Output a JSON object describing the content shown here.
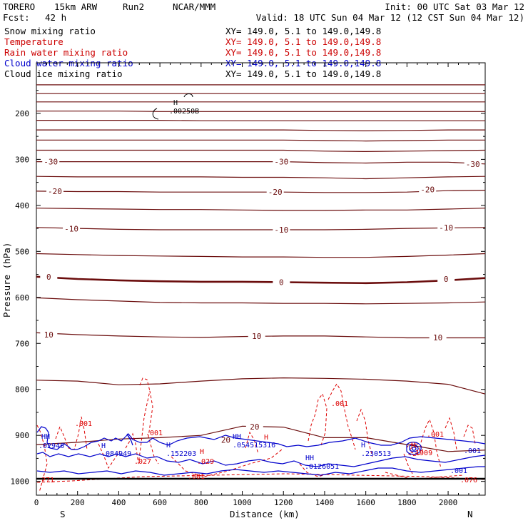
{
  "header": {
    "model": "TORERO",
    "resolution": "15km ARW",
    "run": "Run2",
    "org": "NCAR/MMM",
    "init": "Init: 00 UTC Sat 03 Mar 12",
    "fcst_label": "Fcst:",
    "fcst_value": "42 h",
    "valid": "Valid: 18 UTC Sun 04 Mar 12 (12 CST Sun 04 Mar 12)"
  },
  "fields": [
    {
      "name": "Snow mixing ratio",
      "color": "#000000",
      "xy": "XY= 149.0,  5.1 to 149.0,149.8"
    },
    {
      "name": "Temperature",
      "color": "#cc0000",
      "xy": "XY= 149.0,  5.1 to 149.0,149.8"
    },
    {
      "name": "Rain water mixing ratio",
      "color": "#cc0000",
      "xy": "XY= 149.0,  5.1 to 149.0,149.8"
    },
    {
      "name": "Cloud water mixing ratio",
      "color": "#0000cc",
      "xy": "XY= 149.0,  5.1 to 149.0,149.8"
    },
    {
      "name": "Cloud ice mixing ratio",
      "color": "#000000",
      "xy": "XY= 149.0,  5.1 to 149.0,149.8"
    }
  ],
  "colors": {
    "temperature": "#6b0d0d",
    "rain": "#dd0000",
    "cloud_water": "#0000cc",
    "axis": "#000000"
  },
  "chart_data": {
    "type": "line",
    "xlabel": "Distance (km)",
    "ylabel": "Pressure (hPa)",
    "xlim": [
      0,
      2180
    ],
    "ylim": [
      1030,
      90
    ],
    "x_ticks": [
      0,
      200,
      400,
      600,
      800,
      1000,
      1200,
      1400,
      1600,
      1800,
      2000
    ],
    "y_ticks": [
      200,
      300,
      400,
      500,
      600,
      700,
      800,
      900,
      1000
    ],
    "x_end_labels": {
      "left": "S",
      "right": "N"
    },
    "temperature_isotherm_labels": [
      {
        "value": "-30",
        "x": [
          70,
          1190,
          2120
        ],
        "p": [
          305,
          305,
          310
        ]
      },
      {
        "value": "-20",
        "x": [
          90,
          1160,
          1900
        ],
        "p": [
          369,
          371,
          365
        ]
      },
      {
        "value": "-10",
        "x": [
          170,
          1190,
          1990
        ],
        "p": [
          451,
          453,
          448
        ]
      },
      {
        "value": "0",
        "x": [
          60,
          1190,
          1990
        ],
        "p": [
          555,
          567,
          560
        ]
      },
      {
        "value": "10",
        "x": [
          60,
          1070,
          1950
        ],
        "p": [
          681,
          684,
          687
        ]
      },
      {
        "value": "20",
        "x": [
          1060,
          920
        ],
        "p": [
          881,
          910
        ]
      }
    ],
    "temperature_contours_hPa_at_x": {
      "x": [
        0,
        200,
        400,
        600,
        800,
        1000,
        1200,
        1400,
        1600,
        1800,
        2000,
        2180
      ],
      "levels": [
        [
          138,
          138,
          138,
          138,
          138,
          138,
          138,
          138,
          138,
          138,
          138,
          138
        ],
        [
          157,
          157,
          157,
          157,
          157,
          157,
          157,
          157,
          157,
          157,
          157,
          157
        ],
        [
          175,
          175,
          175,
          175,
          175,
          175,
          175,
          175,
          175,
          175,
          175,
          175
        ],
        [
          195,
          195,
          195,
          196,
          196,
          196,
          196,
          196,
          196,
          196,
          196,
          196
        ],
        [
          215,
          215,
          215,
          215,
          216,
          216,
          216,
          216,
          216,
          216,
          216,
          216
        ],
        [
          236,
          236,
          236,
          236,
          236,
          236,
          236,
          237,
          238,
          237,
          236,
          236
        ],
        [
          258,
          258,
          258,
          258,
          258,
          258,
          258,
          259,
          260,
          259,
          258,
          258
        ],
        [
          280,
          280,
          280,
          280,
          280,
          280,
          280,
          282,
          283,
          282,
          281,
          280
        ],
        [
          305,
          305,
          305,
          305,
          305,
          305,
          305,
          307,
          308,
          306,
          306,
          310
        ],
        [
          337,
          338,
          338,
          338,
          338,
          339,
          339,
          340,
          342,
          340,
          338,
          337
        ],
        [
          369,
          370,
          370,
          371,
          371,
          371,
          371,
          372,
          372,
          371,
          368,
          367
        ],
        [
          406,
          407,
          408,
          409,
          409,
          410,
          411,
          411,
          410,
          410,
          408,
          406
        ],
        [
          448,
          450,
          452,
          453,
          453,
          453,
          453,
          453,
          452,
          450,
          449,
          448
        ],
        [
          505,
          507,
          509,
          510,
          511,
          512,
          512,
          513,
          513,
          511,
          508,
          505
        ],
        [
          555,
          560,
          563,
          565,
          566,
          566,
          567,
          568,
          569,
          567,
          563,
          558
        ],
        [
          601,
          605,
          608,
          611,
          612,
          612,
          613,
          613,
          614,
          613,
          612,
          610
        ],
        [
          677,
          681,
          684,
          686,
          687,
          685,
          684,
          684,
          686,
          688,
          688,
          688
        ],
        [
          780,
          782,
          790,
          788,
          782,
          777,
          775,
          776,
          778,
          782,
          789,
          810
        ],
        [
          920,
          915,
          908,
          905,
          900,
          880,
          882,
          905,
          905,
          920,
          935,
          932
        ]
      ]
    },
    "rain_labels": [
      ".001",
      ".001",
      ".001",
      ".001",
      ".001",
      ".001",
      ".001",
      ".027",
      ".029",
      ".029",
      ".076",
      ".271"
    ],
    "cloud_water_labels": [
      ".02946",
      ".084949",
      ".152203",
      ".054515316",
      ".0126051",
      ".230513",
      ".1909"
    ],
    "snow_labels": [
      ".00250B"
    ]
  }
}
